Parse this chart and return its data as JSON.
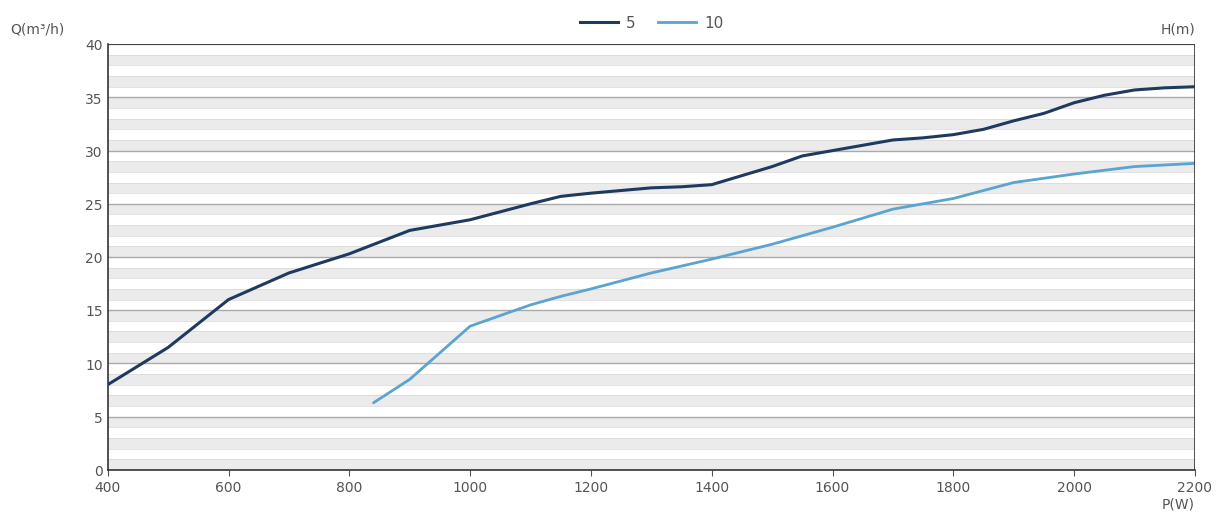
{
  "series_5": {
    "x": [
      400,
      500,
      600,
      700,
      800,
      900,
      1000,
      1100,
      1150,
      1200,
      1300,
      1350,
      1400,
      1500,
      1550,
      1600,
      1650,
      1700,
      1750,
      1800,
      1850,
      1900,
      1950,
      2000,
      2050,
      2100,
      2150,
      2200
    ],
    "y": [
      8.0,
      11.5,
      16.0,
      18.5,
      20.3,
      22.5,
      23.5,
      25.0,
      25.7,
      26.0,
      26.5,
      26.6,
      26.8,
      28.5,
      29.5,
      30.0,
      30.5,
      31.0,
      31.2,
      31.5,
      32.0,
      32.8,
      33.5,
      34.5,
      35.2,
      35.7,
      35.9,
      36.0
    ],
    "color": "#1e3a5f",
    "label": "5",
    "linewidth": 2.2
  },
  "series_10": {
    "x": [
      840,
      900,
      950,
      1000,
      1050,
      1100,
      1150,
      1200,
      1300,
      1400,
      1500,
      1600,
      1700,
      1800,
      1900,
      2000,
      2100,
      2200
    ],
    "y": [
      6.3,
      8.5,
      11.0,
      13.5,
      14.5,
      15.5,
      16.3,
      17.0,
      18.5,
      19.8,
      21.2,
      22.8,
      24.5,
      25.5,
      27.0,
      27.8,
      28.5,
      28.8
    ],
    "color": "#5ba3d0",
    "label": "10",
    "linewidth": 2.0
  },
  "xlim": [
    400,
    2200
  ],
  "ylim": [
    0,
    40
  ],
  "xticks": [
    400,
    600,
    800,
    1000,
    1200,
    1400,
    1600,
    1800,
    2000,
    2200
  ],
  "yticks": [
    0,
    5,
    10,
    15,
    20,
    25,
    30,
    35,
    40
  ],
  "xlabel": "P(W)",
  "ylabel_left": "Q(m³/h)",
  "ylabel_right": "H(m)",
  "bg_color": "#ffffff",
  "plot_bg_color": "#ffffff",
  "stripe_color": "#ebebeb",
  "grid_major_color": "#aaaaaa",
  "grid_minor_color": "#d8d8d8",
  "border_color": "#333333",
  "text_color": "#555555",
  "legend_pos": "upper center"
}
